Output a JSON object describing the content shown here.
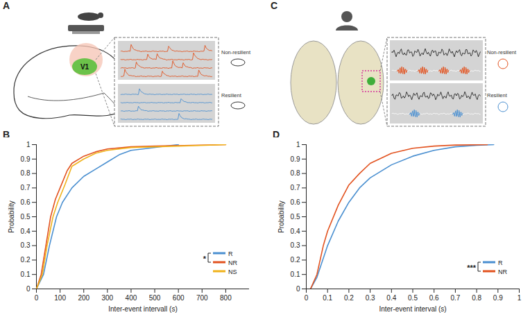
{
  "panel_labels": [
    "A",
    "B",
    "C",
    "D"
  ],
  "illustrations": {
    "A": {
      "region": "V1",
      "traces": [
        {
          "name": "Non-resilient",
          "color": "#e2521f"
        },
        {
          "name": "Resilient",
          "color": "#4a8fd0"
        }
      ]
    },
    "C": {
      "traces": [
        {
          "name": "Non-resilient",
          "color": "#e2521f"
        },
        {
          "name": "Resilient",
          "color": "#4a8fd0"
        }
      ]
    }
  },
  "chart_data": [
    {
      "type": "line",
      "x_label": "Inter-event intervall (s)",
      "y_label": "Probability",
      "xlim": [
        0,
        900
      ],
      "xticks": [
        0,
        100,
        200,
        300,
        400,
        500,
        600,
        700,
        800
      ],
      "ylim": [
        0,
        1
      ],
      "yticks": [
        0,
        0.1,
        0.2,
        0.3,
        0.4,
        0.5,
        0.6,
        0.7,
        0.8,
        0.9,
        1
      ],
      "legend": "bottom-right",
      "annotations": [
        {
          "text": "*",
          "series": [
            "R",
            "NR"
          ]
        }
      ],
      "series": [
        {
          "name": "R",
          "color": "#4a8fd0",
          "x": [
            0,
            30,
            55,
            85,
            110,
            150,
            200,
            250,
            300,
            350,
            400,
            450,
            550,
            600
          ],
          "values": [
            0,
            0.1,
            0.3,
            0.5,
            0.6,
            0.7,
            0.78,
            0.83,
            0.88,
            0.93,
            0.96,
            0.97,
            0.99,
            1
          ]
        },
        {
          "name": "NR",
          "color": "#e2521f",
          "x": [
            0,
            20,
            40,
            60,
            80,
            100,
            130,
            150,
            200,
            250,
            300,
            400,
            500,
            800
          ],
          "values": [
            0,
            0.1,
            0.3,
            0.5,
            0.62,
            0.7,
            0.82,
            0.87,
            0.92,
            0.95,
            0.97,
            0.985,
            0.99,
            1
          ]
        },
        {
          "name": "NS",
          "color": "#f0b21a",
          "x": [
            0,
            25,
            45,
            70,
            90,
            120,
            150,
            200,
            250,
            300,
            400,
            600,
            800
          ],
          "values": [
            0,
            0.1,
            0.3,
            0.5,
            0.6,
            0.72,
            0.85,
            0.9,
            0.94,
            0.96,
            0.98,
            0.99,
            1
          ]
        }
      ]
    },
    {
      "type": "line",
      "x_label": "Inter-event interval (s)",
      "y_label": "Probability",
      "xlim": [
        0,
        1
      ],
      "xticks": [
        0,
        0.1,
        0.2,
        0.3,
        0.4,
        0.5,
        0.6,
        0.7,
        0.8,
        0.9,
        1
      ],
      "ylim": [
        0,
        1
      ],
      "yticks": [
        0,
        0.1,
        0.2,
        0.3,
        0.4,
        0.5,
        0.6,
        0.7,
        0.8,
        0.9,
        1
      ],
      "legend": "bottom-right",
      "annotations": [
        {
          "text": "***",
          "series": [
            "R",
            "NR"
          ]
        }
      ],
      "series": [
        {
          "name": "R",
          "color": "#4a8fd0",
          "x": [
            0.02,
            0.05,
            0.1,
            0.15,
            0.2,
            0.25,
            0.3,
            0.4,
            0.5,
            0.6,
            0.7,
            0.8,
            0.88
          ],
          "values": [
            0,
            0.08,
            0.3,
            0.47,
            0.6,
            0.7,
            0.77,
            0.86,
            0.92,
            0.96,
            0.985,
            0.995,
            1
          ]
        },
        {
          "name": "NR",
          "color": "#e2521f",
          "x": [
            0.02,
            0.05,
            0.08,
            0.1,
            0.15,
            0.2,
            0.25,
            0.3,
            0.4,
            0.5,
            0.6,
            0.7,
            0.85
          ],
          "values": [
            0,
            0.1,
            0.3,
            0.4,
            0.58,
            0.72,
            0.8,
            0.87,
            0.94,
            0.975,
            0.99,
            0.997,
            1
          ]
        }
      ]
    }
  ]
}
